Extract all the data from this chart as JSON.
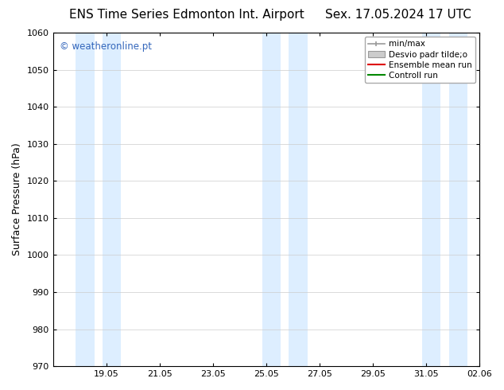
{
  "title_left": "ENS Time Series Edmonton Int. Airport",
  "title_right": "Sex. 17.05.2024 17 UTC",
  "ylabel": "Surface Pressure (hPa)",
  "ylim": [
    970,
    1060
  ],
  "yticks": [
    970,
    980,
    990,
    1000,
    1010,
    1020,
    1030,
    1040,
    1050,
    1060
  ],
  "xtick_labels": [
    "19.05",
    "21.05",
    "23.05",
    "25.05",
    "27.05",
    "29.05",
    "31.05",
    "02.06"
  ],
  "xtick_positions": [
    2,
    4,
    6,
    8,
    10,
    12,
    14,
    16
  ],
  "xlim": [
    0,
    16
  ],
  "watermark": "© weatheronline.pt",
  "watermark_color": "#3366bb",
  "shaded_bands": [
    {
      "x_start": 0.85,
      "x_end": 1.55
    },
    {
      "x_start": 1.85,
      "x_end": 2.55
    },
    {
      "x_start": 7.85,
      "x_end": 8.55
    },
    {
      "x_start": 8.85,
      "x_end": 9.55
    },
    {
      "x_start": 13.85,
      "x_end": 14.55
    },
    {
      "x_start": 14.85,
      "x_end": 15.55
    }
  ],
  "band_color": "#ddeeff",
  "legend_labels": [
    "min/max",
    "Desvio padr tilde;o",
    "Ensemble mean run",
    "Controll run"
  ],
  "legend_colors_line": [
    "#aaaaaa",
    "#cccccc",
    "#dd0000",
    "#008800"
  ],
  "bg_color": "#ffffff",
  "plot_bg_color": "#ffffff",
  "grid_color": "#cccccc",
  "title_fontsize": 11,
  "axis_label_fontsize": 9,
  "tick_fontsize": 8,
  "legend_fontsize": 7.5
}
